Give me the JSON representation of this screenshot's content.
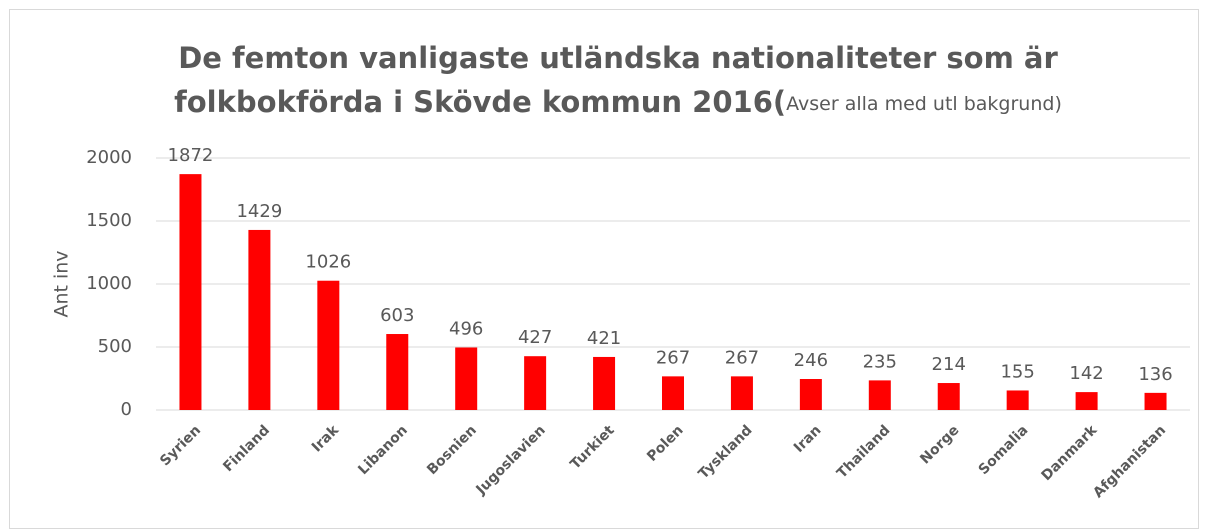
{
  "chart_data": {
    "type": "bar",
    "title": [
      "De femton vanligaste utländska nationaliteter som är",
      "folkbokförda i Skövde kommun 2016("
    ],
    "subtitle": "Avser alla med utl bakgrund)",
    "y_label": "Ant inv",
    "categories": [
      "Syrien",
      "Finland",
      "Irak",
      "Libanon",
      "Bosnien",
      "Jugoslavien",
      "Turkiet",
      "Polen",
      "Tyskland",
      "Iran",
      "Thailand",
      "Norge",
      "Somalia",
      "Danmark",
      "Afghanistan"
    ],
    "values": [
      1872,
      1429,
      1026,
      603,
      496,
      427,
      421,
      267,
      267,
      246,
      235,
      214,
      155,
      142,
      136
    ],
    "color": "#ff0000",
    "ylim": [
      0,
      2000
    ],
    "yticks": [
      0,
      500,
      1000,
      1500,
      2000
    ],
    "grid": true
  }
}
